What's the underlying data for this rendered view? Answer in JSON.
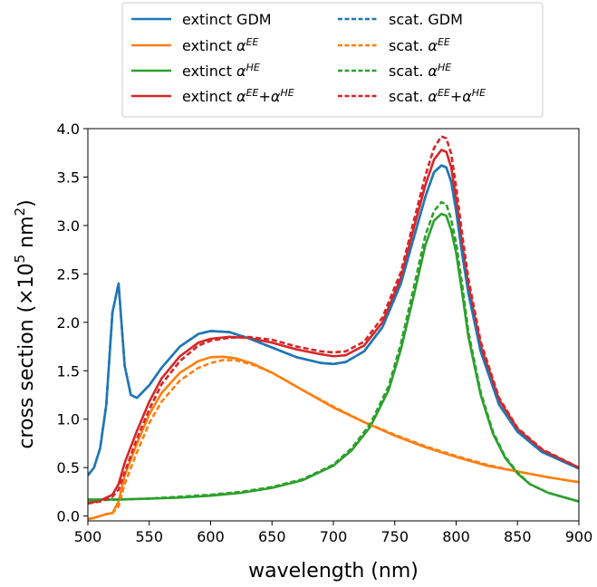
{
  "chart_data": {
    "type": "line",
    "xlabel": "wavelength (nm)",
    "ylabel_parts": [
      "cross section (×10",
      "5",
      " nm",
      "2",
      ")"
    ],
    "xlim": [
      500,
      900
    ],
    "ylim": [
      -0.05,
      4.0
    ],
    "xticks": [
      500,
      550,
      600,
      650,
      700,
      750,
      800,
      850,
      900
    ],
    "xtick_labels": [
      "500",
      "550",
      "600",
      "650",
      "700",
      "750",
      "800",
      "850",
      "900"
    ],
    "yticks": [
      0.0,
      0.5,
      1.0,
      1.5,
      2.0,
      2.5,
      3.0,
      3.5,
      4.0
    ],
    "ytick_labels": [
      "0.0",
      "0.5",
      "1.0",
      "1.5",
      "2.0",
      "2.5",
      "3.0",
      "3.5",
      "4.0"
    ],
    "grid": false,
    "legend_position": "top-center, two columns",
    "series": [
      {
        "name": "extinct GDM",
        "label": [
          {
            "t": "extinct GDM",
            "sup": false
          }
        ],
        "color": "#1f77b4",
        "dash": "solid",
        "x": [
          500,
          505,
          510,
          515,
          520,
          525,
          530,
          535,
          540,
          550,
          560,
          575,
          590,
          600,
          615,
          630,
          650,
          670,
          690,
          700,
          710,
          725,
          740,
          755,
          765,
          775,
          782,
          788,
          792,
          796,
          800,
          805,
          810,
          820,
          835,
          850,
          870,
          900
        ],
        "y": [
          0.42,
          0.5,
          0.7,
          1.15,
          2.1,
          2.4,
          1.55,
          1.25,
          1.22,
          1.35,
          1.53,
          1.75,
          1.88,
          1.91,
          1.9,
          1.84,
          1.74,
          1.64,
          1.58,
          1.57,
          1.59,
          1.7,
          1.95,
          2.4,
          2.85,
          3.3,
          3.55,
          3.62,
          3.6,
          3.45,
          3.15,
          2.7,
          2.3,
          1.7,
          1.15,
          0.87,
          0.66,
          0.49
        ]
      },
      {
        "name": "extinct αEE",
        "label": [
          {
            "t": "extinct ",
            "sup": false
          },
          {
            "t": "α",
            "sup": false
          },
          {
            "t": "EE",
            "sup": true
          }
        ],
        "color": "#ff7f0e",
        "dash": "solid",
        "x": [
          500,
          505,
          510,
          515,
          520,
          525,
          530,
          540,
          550,
          560,
          575,
          590,
          600,
          610,
          620,
          635,
          650,
          675,
          700,
          725,
          750,
          775,
          800,
          825,
          850,
          875,
          900
        ],
        "y": [
          -0.03,
          -0.02,
          0.0,
          0.02,
          0.03,
          0.15,
          0.42,
          0.75,
          1.05,
          1.27,
          1.48,
          1.6,
          1.64,
          1.645,
          1.63,
          1.57,
          1.48,
          1.3,
          1.12,
          0.97,
          0.83,
          0.71,
          0.61,
          0.52,
          0.46,
          0.4,
          0.35
        ]
      },
      {
        "name": "extinct αHE",
        "label": [
          {
            "t": "extinct ",
            "sup": false
          },
          {
            "t": "α",
            "sup": false
          },
          {
            "t": "HE",
            "sup": true
          }
        ],
        "color": "#2ca02c",
        "dash": "solid",
        "x": [
          500,
          525,
          550,
          575,
          600,
          625,
          650,
          675,
          700,
          715,
          730,
          745,
          755,
          765,
          775,
          782,
          788,
          792,
          796,
          800,
          805,
          810,
          820,
          830,
          840,
          850,
          860,
          875,
          900
        ],
        "y": [
          0.17,
          0.17,
          0.18,
          0.19,
          0.21,
          0.24,
          0.29,
          0.37,
          0.52,
          0.68,
          0.92,
          1.3,
          1.72,
          2.25,
          2.8,
          3.05,
          3.12,
          3.1,
          2.95,
          2.72,
          2.3,
          1.85,
          1.25,
          0.85,
          0.6,
          0.44,
          0.33,
          0.24,
          0.15
        ]
      },
      {
        "name": "extinct αEE+αHE",
        "label": [
          {
            "t": "extinct ",
            "sup": false
          },
          {
            "t": "α",
            "sup": false
          },
          {
            "t": "EE",
            "sup": true
          },
          {
            "t": "+α",
            "sup": false
          },
          {
            "t": "HE",
            "sup": true
          }
        ],
        "color": "#d62728",
        "dash": "solid",
        "x": [
          500,
          510,
          520,
          525,
          530,
          540,
          550,
          560,
          575,
          590,
          600,
          615,
          630,
          650,
          670,
          690,
          700,
          710,
          725,
          740,
          755,
          765,
          775,
          782,
          788,
          792,
          796,
          800,
          805,
          810,
          820,
          835,
          850,
          870,
          900
        ],
        "y": [
          0.13,
          0.16,
          0.22,
          0.33,
          0.55,
          0.88,
          1.18,
          1.42,
          1.65,
          1.79,
          1.83,
          1.85,
          1.84,
          1.79,
          1.72,
          1.67,
          1.65,
          1.66,
          1.76,
          2.0,
          2.46,
          2.95,
          3.42,
          3.68,
          3.78,
          3.76,
          3.6,
          3.28,
          2.8,
          2.38,
          1.76,
          1.2,
          0.9,
          0.68,
          0.5
        ]
      },
      {
        "name": "scat. GDM",
        "label": [
          {
            "t": "scat. GDM",
            "sup": false
          }
        ],
        "color": "#1f77b4",
        "dash": "dashed",
        "x": [
          500,
          505,
          510,
          515,
          520,
          525,
          530,
          535,
          540,
          550,
          560,
          575,
          590,
          600,
          615,
          630,
          650,
          670,
          690,
          700,
          710,
          725,
          740,
          755,
          765,
          775,
          782,
          788,
          792,
          796,
          800,
          805,
          810,
          820,
          835,
          850,
          870,
          900
        ],
        "y": [
          0.42,
          0.5,
          0.7,
          1.15,
          2.1,
          2.4,
          1.55,
          1.25,
          1.22,
          1.35,
          1.53,
          1.75,
          1.88,
          1.91,
          1.9,
          1.84,
          1.74,
          1.64,
          1.58,
          1.57,
          1.59,
          1.7,
          1.95,
          2.4,
          2.85,
          3.3,
          3.55,
          3.62,
          3.6,
          3.45,
          3.15,
          2.7,
          2.3,
          1.7,
          1.15,
          0.87,
          0.66,
          0.49
        ]
      },
      {
        "name": "scat. αEE",
        "label": [
          {
            "t": "scat. ",
            "sup": false
          },
          {
            "t": "α",
            "sup": false
          },
          {
            "t": "EE",
            "sup": true
          }
        ],
        "color": "#ff7f0e",
        "dash": "dashed",
        "x": [
          500,
          505,
          510,
          515,
          520,
          525,
          530,
          540,
          550,
          560,
          575,
          590,
          600,
          610,
          620,
          635,
          650,
          675,
          700,
          725,
          750,
          775,
          800,
          825,
          850,
          875,
          900
        ],
        "y": [
          -0.03,
          -0.02,
          0.0,
          0.02,
          0.03,
          0.1,
          0.33,
          0.66,
          0.96,
          1.18,
          1.4,
          1.53,
          1.58,
          1.61,
          1.61,
          1.56,
          1.48,
          1.3,
          1.13,
          0.97,
          0.84,
          0.72,
          0.62,
          0.53,
          0.46,
          0.4,
          0.35
        ]
      },
      {
        "name": "scat. αHE",
        "label": [
          {
            "t": "scat. ",
            "sup": false
          },
          {
            "t": "α",
            "sup": false
          },
          {
            "t": "HE",
            "sup": true
          }
        ],
        "color": "#2ca02c",
        "dash": "dashed",
        "x": [
          500,
          525,
          550,
          575,
          600,
          625,
          650,
          675,
          700,
          715,
          730,
          745,
          755,
          765,
          775,
          782,
          788,
          792,
          796,
          800,
          805,
          810,
          820,
          830,
          840,
          850,
          860,
          875,
          900
        ],
        "y": [
          0.16,
          0.17,
          0.18,
          0.2,
          0.22,
          0.25,
          0.3,
          0.38,
          0.53,
          0.7,
          0.95,
          1.34,
          1.78,
          2.33,
          2.9,
          3.15,
          3.24,
          3.22,
          3.06,
          2.82,
          2.38,
          1.9,
          1.28,
          0.87,
          0.61,
          0.45,
          0.33,
          0.24,
          0.15
        ]
      },
      {
        "name": "scat. αEE+αHE",
        "label": [
          {
            "t": "scat. ",
            "sup": false
          },
          {
            "t": "α",
            "sup": false
          },
          {
            "t": "EE",
            "sup": true
          },
          {
            "t": "+α",
            "sup": false
          },
          {
            "t": "HE",
            "sup": true
          }
        ],
        "color": "#d62728",
        "dash": "dashed",
        "x": [
          500,
          510,
          520,
          525,
          530,
          540,
          550,
          560,
          575,
          590,
          600,
          615,
          630,
          650,
          670,
          690,
          700,
          710,
          725,
          740,
          755,
          765,
          775,
          782,
          788,
          792,
          796,
          800,
          805,
          810,
          820,
          835,
          850,
          870,
          900
        ],
        "y": [
          0.13,
          0.15,
          0.2,
          0.27,
          0.45,
          0.8,
          1.1,
          1.36,
          1.6,
          1.76,
          1.81,
          1.84,
          1.85,
          1.82,
          1.75,
          1.7,
          1.69,
          1.7,
          1.8,
          2.05,
          2.52,
          3.02,
          3.52,
          3.8,
          3.92,
          3.9,
          3.74,
          3.4,
          2.9,
          2.45,
          1.8,
          1.22,
          0.91,
          0.69,
          0.5
        ]
      }
    ]
  }
}
